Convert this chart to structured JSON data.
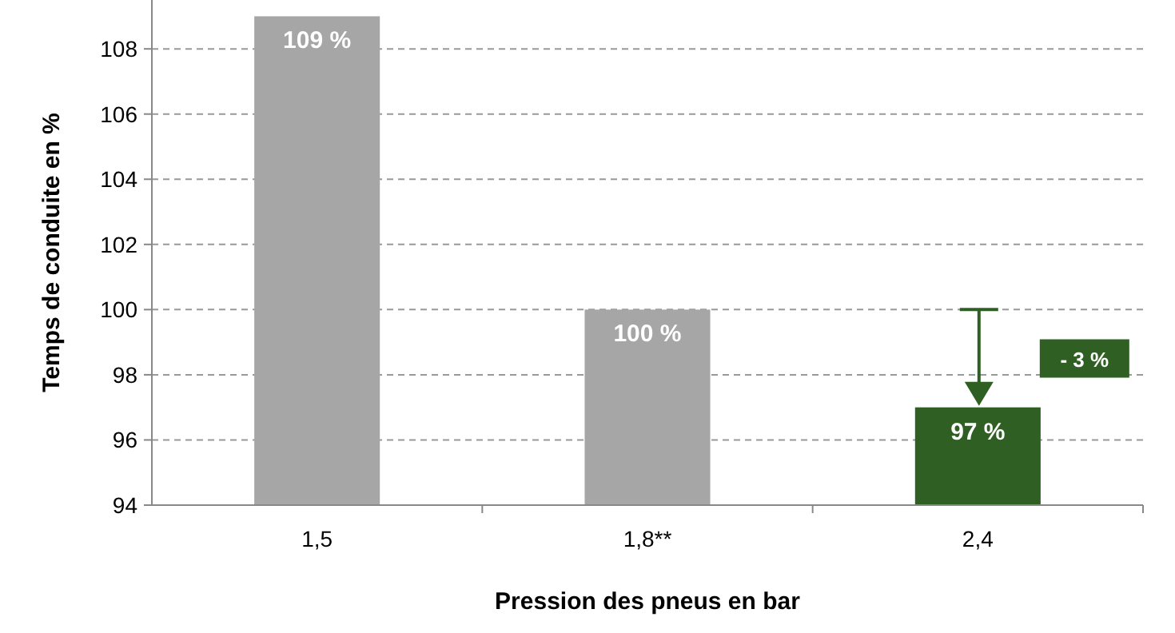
{
  "chart_data": {
    "type": "bar",
    "xlabel": "Pression des pneus en bar",
    "ylabel": "Temps de conduite en %",
    "categories": [
      "1,5",
      "1,8**",
      "2,4"
    ],
    "values": [
      109,
      100,
      97
    ],
    "colors": [
      "#a6a6a6",
      "#a6a6a6",
      "#2f5f22"
    ],
    "value_labels": [
      "109 %",
      "100 %",
      "97 %"
    ],
    "ylim": [
      94,
      109.5
    ],
    "yticks": [
      94,
      96,
      98,
      100,
      102,
      104,
      106,
      108
    ],
    "grid": "y",
    "annotations": [
      "- 3 %"
    ]
  }
}
